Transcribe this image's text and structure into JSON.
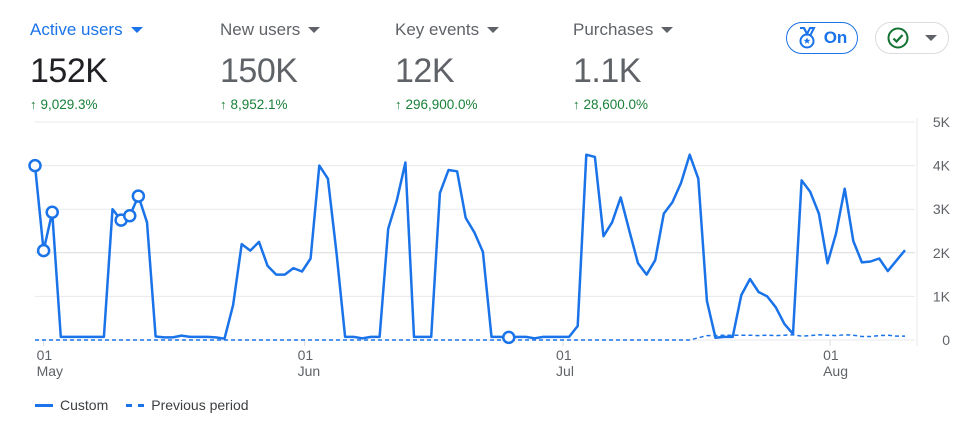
{
  "metrics": [
    {
      "label": "Active users",
      "value": "152K",
      "change": "9,029.3%",
      "active": true
    },
    {
      "label": "New users",
      "value": "150K",
      "change": "8,952.1%",
      "active": false
    },
    {
      "label": "Key events",
      "value": "12K",
      "change": "296,900.0%",
      "active": false
    },
    {
      "label": "Purchases",
      "value": "1.1K",
      "change": "28,600.0%",
      "active": false
    }
  ],
  "toolbar": {
    "insights_label": "On",
    "insights_icon": "medal-icon",
    "status_icon": "check-circle-icon"
  },
  "colors": {
    "accent": "#1a73e8",
    "positive": "#188038",
    "check": "#137333"
  },
  "chart_data": {
    "type": "line",
    "y_ticks": [
      "0",
      "1K",
      "2K",
      "3K",
      "4K",
      "5K"
    ],
    "ylim": [
      0,
      5000
    ],
    "grid": true,
    "x_ticks": [
      {
        "day": "01",
        "month": "May"
      },
      {
        "day": "01",
        "month": "Jun"
      },
      {
        "day": "01",
        "month": "Jul"
      },
      {
        "day": "01",
        "month": "Aug"
      }
    ],
    "legend_position": "bottom-left",
    "series": [
      {
        "name": "Custom",
        "style": "solid",
        "values": [
          4000,
          2050,
          2930,
          70,
          70,
          70,
          70,
          70,
          70,
          3000,
          2750,
          2850,
          3300,
          2700,
          80,
          60,
          60,
          100,
          70,
          70,
          70,
          60,
          30,
          800,
          2200,
          2050,
          2250,
          1700,
          1500,
          1500,
          1650,
          1570,
          1870,
          4000,
          3700,
          2000,
          70,
          70,
          40,
          70,
          70,
          2550,
          3200,
          4070,
          70,
          70,
          70,
          3370,
          3900,
          3870,
          2800,
          2470,
          2020,
          70,
          70,
          60,
          70,
          70,
          40,
          70,
          70,
          70,
          70,
          320,
          4250,
          4200,
          2380,
          2700,
          3270,
          2500,
          1760,
          1500,
          1830,
          2900,
          3160,
          3600,
          4250,
          3700,
          900,
          50,
          70,
          70,
          1030,
          1400,
          1100,
          1000,
          750,
          370,
          140,
          3660,
          3400,
          2900,
          1760,
          2450,
          3470,
          2270,
          1780,
          1800,
          1870,
          1580,
          1820,
          2060
        ]
      },
      {
        "name": "Previous period",
        "style": "dashed",
        "values": [
          0,
          0,
          0,
          0,
          0,
          0,
          0,
          0,
          0,
          0,
          0,
          0,
          0,
          0,
          0,
          0,
          0,
          0,
          0,
          0,
          0,
          0,
          0,
          0,
          0,
          0,
          0,
          0,
          0,
          0,
          0,
          0,
          0,
          0,
          0,
          0,
          0,
          0,
          0,
          0,
          0,
          0,
          0,
          0,
          0,
          0,
          0,
          0,
          0,
          0,
          0,
          0,
          0,
          0,
          0,
          0,
          0,
          0,
          0,
          0,
          0,
          0,
          0,
          0,
          0,
          0,
          0,
          0,
          0,
          0,
          0,
          0,
          0,
          0,
          0,
          0,
          0,
          50,
          100,
          100,
          110,
          110,
          110,
          110,
          100,
          110,
          100,
          110,
          120,
          90,
          100,
          120,
          110,
          100,
          120,
          110,
          80,
          80,
          100,
          110,
          90,
          90
        ]
      }
    ],
    "annotated_points": [
      0,
      1,
      2,
      10,
      11,
      12,
      55
    ]
  }
}
